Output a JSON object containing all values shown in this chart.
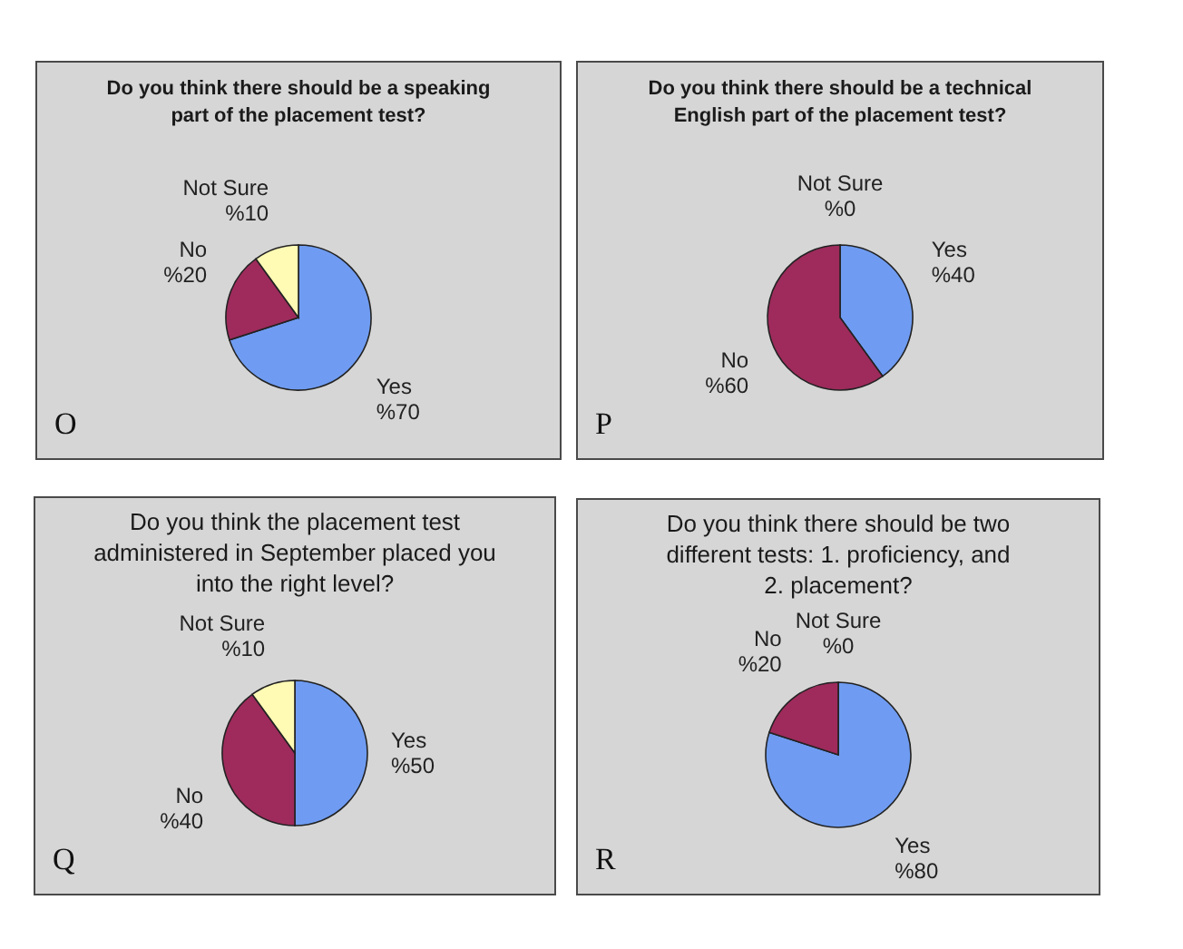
{
  "chart_data": [
    {
      "type": "pie",
      "title": "Do you think there should be a speaking part of the placement test?",
      "categories": [
        "Yes",
        "No",
        "Not Sure"
      ],
      "values": [
        70,
        20,
        10
      ],
      "colors": [
        "#6f9cf2",
        "#9e2b5c",
        "#fffab4"
      ],
      "value_labels": [
        "%70",
        "%20",
        "%10"
      ],
      "annotations": [
        "O"
      ]
    },
    {
      "type": "pie",
      "title": "Do you think there should be a technical English part of the placement test?",
      "categories": [
        "Yes",
        "No",
        "Not Sure"
      ],
      "values": [
        40,
        60,
        0
      ],
      "colors": [
        "#6f9cf2",
        "#9e2b5c",
        null
      ],
      "value_labels": [
        "%40",
        "%60",
        "%0"
      ],
      "annotations": [
        "P"
      ]
    },
    {
      "type": "pie",
      "title": "Do you think the placement test administered in September placed you into the right level?",
      "categories": [
        "Yes",
        "No",
        "Not Sure"
      ],
      "values": [
        50,
        40,
        10
      ],
      "colors": [
        "#6f9cf2",
        "#9e2b5c",
        "#fffab4"
      ],
      "value_labels": [
        "%50",
        "%40",
        "%10"
      ],
      "annotations": [
        "Q"
      ]
    },
    {
      "type": "pie",
      "title": "Do you think there should be two different tests: 1. proficiency, and 2. placement?",
      "categories": [
        "Yes",
        "No",
        "Not Sure"
      ],
      "values": [
        80,
        20,
        0
      ],
      "colors": [
        "#6f9cf2",
        "#9e2b5c",
        null
      ],
      "value_labels": [
        "%80",
        "%20",
        "%0"
      ],
      "annotations": [
        "R"
      ]
    }
  ]
}
